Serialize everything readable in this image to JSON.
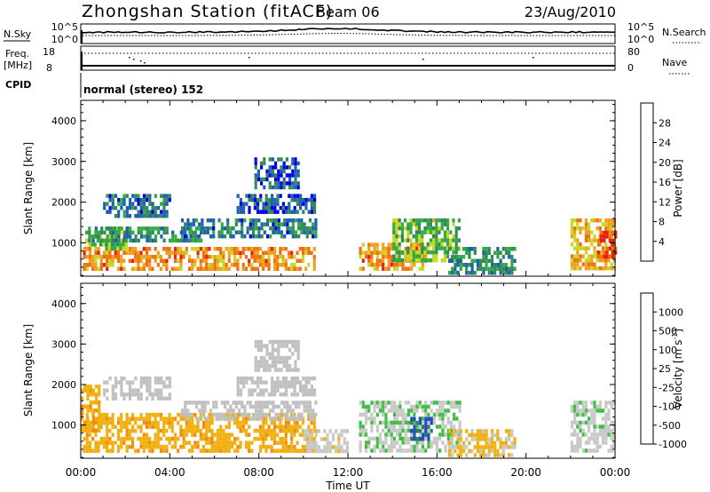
{
  "header": {
    "station": "Zhongshan Station (fitACF)",
    "beam": "Beam 06",
    "date": "23/Aug/2010"
  },
  "strips": {
    "nsky_label": "N.Sky",
    "nsky_ticks": [
      "10^5",
      "10^0"
    ],
    "nsearch_label": "N.Search",
    "nsearch_ticks": [
      "10^5",
      "10^0"
    ],
    "freq_label": "Freq.",
    "freq_unit": "[MHz]",
    "freq_ticks": [
      "18",
      "8"
    ],
    "nave_label": "Nave",
    "nave_ticks": [
      "80",
      "0"
    ],
    "cpid_label": "CPID",
    "cpid_text": "normal (stereo) 152"
  },
  "x_axis": {
    "label": "Time UT",
    "ticks": [
      "00:00",
      "04:00",
      "08:00",
      "12:00",
      "16:00",
      "20:00",
      "00:00"
    ]
  },
  "power_panel": {
    "ylabel": "Slant Range [km]",
    "yticks": [
      "1000",
      "2000",
      "3000",
      "4000"
    ],
    "colorbar_label": "Power [dB]",
    "colorbar_ticks": [
      "4",
      "8",
      "12",
      "16",
      "20",
      "24",
      "28"
    ]
  },
  "velocity_panel": {
    "ylabel": "Slant Range [km]",
    "yticks": [
      "1000",
      "2000",
      "3000",
      "4000"
    ],
    "colorbar_label": "Velocity [m s",
    "colorbar_label_sup": "-1",
    "colorbar_label_end": "]",
    "colorbar_ticks": [
      "1000",
      "500",
      "100",
      "25",
      "-25",
      "-100",
      "-500",
      "-1000"
    ]
  },
  "colors": {
    "power_scale": [
      "#0000e0",
      "#1f5fb0",
      "#2f8a5a",
      "#33aa44",
      "#c8d820",
      "#f0a020",
      "#f07010",
      "#e82010"
    ],
    "velocity_scale": [
      "#e01010",
      "#f06010",
      "#f08c10",
      "#f0b010",
      "#c8c8c8",
      "#3fbf3f",
      "#2e7e5e",
      "#2050c0"
    ],
    "ground_scatter": "#c0c0c0"
  },
  "chart_data": [
    {
      "type": "heatmap",
      "title": "Power [dB]",
      "xlabel": "Time UT",
      "ylabel": "Slant Range [km]",
      "x_range_hours": [
        0,
        24
      ],
      "y_range_km": [
        180,
        4500
      ],
      "color_range": [
        0,
        30
      ],
      "regions": [
        {
          "t_start": 0.1,
          "t_end": 10.5,
          "r_low": 400,
          "r_high": 900,
          "value": 22
        },
        {
          "t_start": 0.2,
          "t_end": 2.0,
          "r_low": 900,
          "r_high": 1400,
          "value": 14
        },
        {
          "t_start": 0.5,
          "t_end": 5.5,
          "r_low": 1100,
          "r_high": 1400,
          "value": 10
        },
        {
          "t_start": 1.0,
          "t_end": 4.0,
          "r_low": 1700,
          "r_high": 2200,
          "value": 8
        },
        {
          "t_start": 4.5,
          "t_end": 10.5,
          "r_low": 1200,
          "r_high": 1600,
          "value": 8
        },
        {
          "t_start": 7.0,
          "t_end": 10.5,
          "r_low": 1800,
          "r_high": 2200,
          "value": 6
        },
        {
          "t_start": 7.8,
          "t_end": 9.8,
          "r_low": 2400,
          "r_high": 3100,
          "value": 5
        },
        {
          "t_start": 12.5,
          "t_end": 15.5,
          "r_low": 400,
          "r_high": 1000,
          "value": 22
        },
        {
          "t_start": 14.0,
          "t_end": 17.0,
          "r_low": 600,
          "r_high": 1600,
          "value": 14
        },
        {
          "t_start": 16.5,
          "t_end": 19.5,
          "r_low": 300,
          "r_high": 900,
          "value": 10
        },
        {
          "t_start": 22.0,
          "t_end": 24.0,
          "r_low": 400,
          "r_high": 1600,
          "value": 20
        },
        {
          "t_start": 23.2,
          "t_end": 24.0,
          "r_low": 700,
          "r_high": 1300,
          "value": 28
        }
      ]
    },
    {
      "type": "heatmap",
      "title": "Velocity [m s-1]",
      "xlabel": "Time UT",
      "ylabel": "Slant Range [km]",
      "x_range_hours": [
        0,
        24
      ],
      "y_range_km": [
        180,
        4500
      ],
      "color_range": [
        -1000,
        1000
      ],
      "regions": [
        {
          "t_start": 0.1,
          "t_end": 10.5,
          "r_low": 400,
          "r_high": 1300,
          "value": -150
        },
        {
          "t_start": 0.0,
          "t_end": 0.8,
          "r_low": 900,
          "r_high": 2000,
          "value": -150
        },
        {
          "t_start": 1.0,
          "t_end": 4.0,
          "r_low": 1700,
          "r_high": 2200,
          "value": 0,
          "ground_scatter": true
        },
        {
          "t_start": 4.5,
          "t_end": 10.5,
          "r_low": 1200,
          "r_high": 1600,
          "value": 0,
          "ground_scatter": true
        },
        {
          "t_start": 7.0,
          "t_end": 10.5,
          "r_low": 1800,
          "r_high": 2200,
          "value": 0,
          "ground_scatter": true
        },
        {
          "t_start": 7.8,
          "t_end": 9.8,
          "r_low": 2400,
          "r_high": 3100,
          "value": 0,
          "ground_scatter": true
        },
        {
          "t_start": 10.0,
          "t_end": 12.0,
          "r_low": 400,
          "r_high": 900,
          "value": 80
        },
        {
          "t_start": 12.5,
          "t_end": 17.0,
          "r_low": 400,
          "r_high": 1600,
          "value": 200
        },
        {
          "t_start": 14.8,
          "t_end": 15.8,
          "r_low": 700,
          "r_high": 1200,
          "value": 800
        },
        {
          "t_start": 16.5,
          "t_end": 19.5,
          "r_low": 300,
          "r_high": 900,
          "value": -80
        },
        {
          "t_start": 22.0,
          "t_end": 24.0,
          "r_low": 400,
          "r_high": 1600,
          "value": 150
        }
      ]
    }
  ]
}
